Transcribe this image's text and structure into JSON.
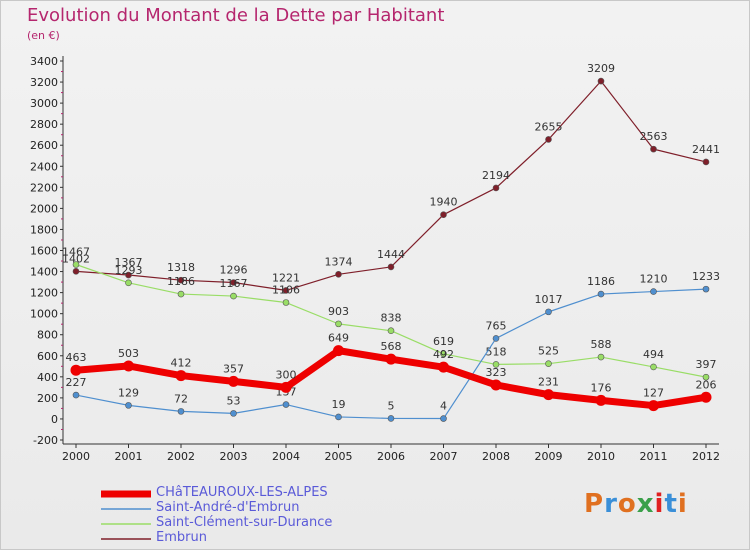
{
  "title": "Evolution du Montant de la Dette par Habitant",
  "unit": "(en €)",
  "logo": {
    "text": "Proxiti",
    "colors": [
      "#e07020",
      "#3a8fd8",
      "#e07020",
      "#3aa04a",
      "#e02020",
      "#3a8fd8",
      "#e07020"
    ]
  },
  "chart_data": {
    "type": "line",
    "title": "Evolution du Montant de la Dette par Habitant",
    "ylabel": "(en €)",
    "x": [
      "2000",
      "2001",
      "2002",
      "2003",
      "2004",
      "2005",
      "2006",
      "2007",
      "2008",
      "2009",
      "2010",
      "2011",
      "2012"
    ],
    "ylim": [
      -200,
      3400
    ],
    "yticks": [
      -200,
      0,
      200,
      400,
      600,
      800,
      1000,
      1200,
      1400,
      1600,
      1800,
      2000,
      2200,
      2400,
      2600,
      2800,
      3000,
      3200,
      3400
    ],
    "grid": false,
    "legend_position": "bottom-left",
    "series": [
      {
        "name": "CHâTEAUROUX-LES-ALPES",
        "color": "#ee0000",
        "values": [
          463,
          503,
          412,
          357,
          300,
          649,
          568,
          492,
          323,
          231,
          176,
          127,
          206
        ]
      },
      {
        "name": "Saint-André-d'Embrun",
        "color": "#4f8fcf",
        "values": [
          227,
          129,
          72,
          53,
          137,
          19,
          5,
          4,
          765,
          1017,
          1186,
          1210,
          1233
        ]
      },
      {
        "name": "Saint-Clément-sur-Durance",
        "color": "#99dd66",
        "values": [
          1467,
          1293,
          1186,
          1167,
          1106,
          903,
          838,
          619,
          518,
          525,
          588,
          494,
          397
        ]
      },
      {
        "name": "Embrun",
        "color": "#7f1f2a",
        "values": [
          1402,
          1367,
          1318,
          1296,
          1221,
          1374,
          1444,
          1940,
          2194,
          2655,
          3209,
          2563,
          2441
        ]
      }
    ]
  }
}
